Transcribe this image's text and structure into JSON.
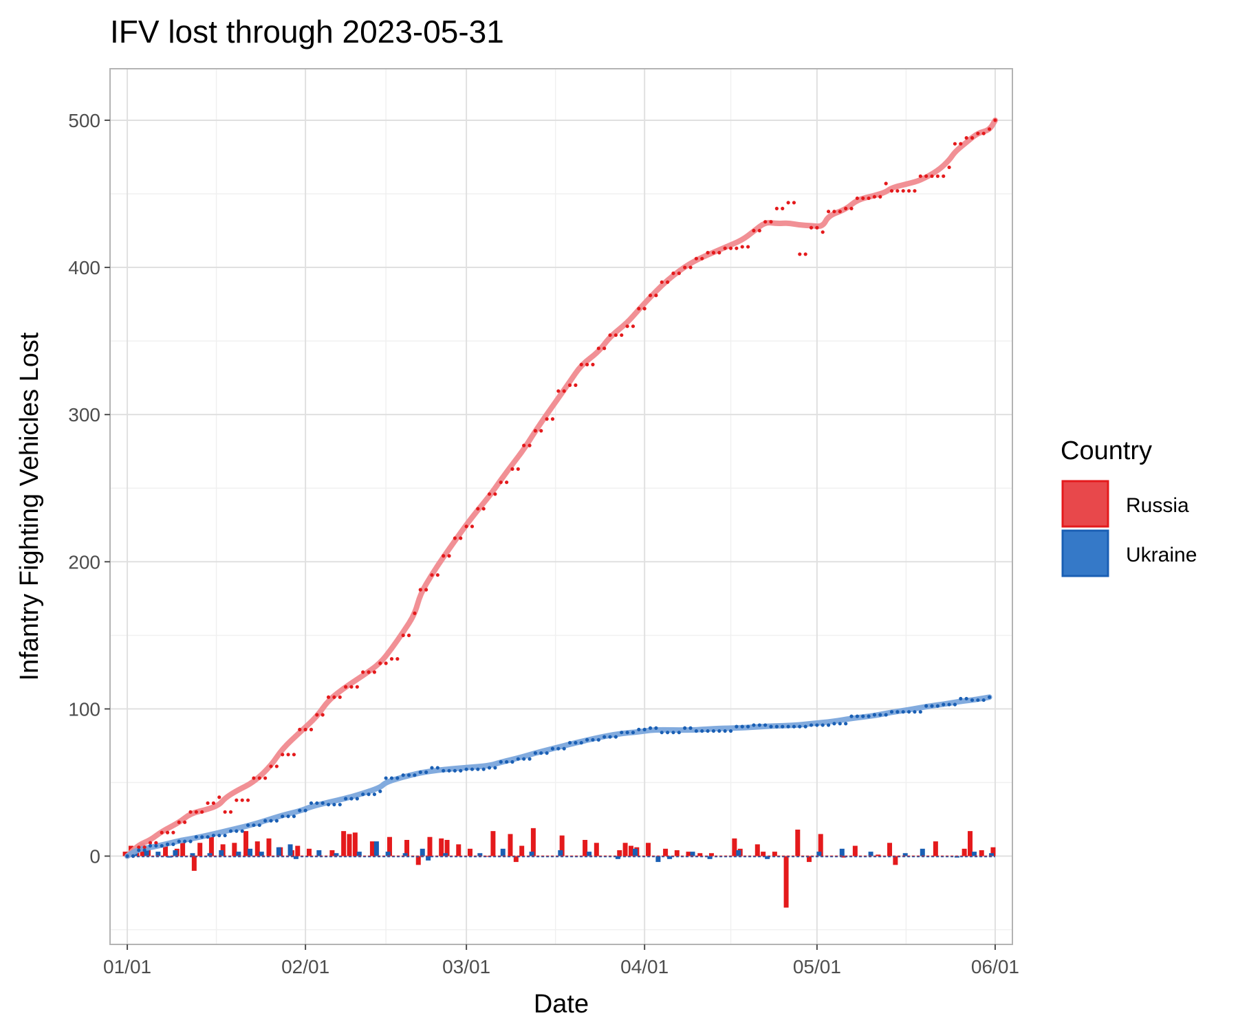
{
  "chart_data": {
    "type": "line",
    "title": "IFV lost through 2023-05-31",
    "xlabel": "Date",
    "ylabel": "Infantry Fighting Vehicles Lost",
    "x_range": [
      "2022-12-29",
      "2023-06-04"
    ],
    "ylim": [
      -60,
      535
    ],
    "x_ticks": [
      {
        "date": "2023-01-01",
        "label": "01/01"
      },
      {
        "date": "2023-02-01",
        "label": "02/01"
      },
      {
        "date": "2023-03-01",
        "label": "03/01"
      },
      {
        "date": "2023-04-01",
        "label": "04/01"
      },
      {
        "date": "2023-05-01",
        "label": "05/01"
      },
      {
        "date": "2023-06-01",
        "label": "06/01"
      }
    ],
    "y_ticks": [
      0,
      100,
      200,
      300,
      400,
      500
    ],
    "grid": true,
    "legend": {
      "title": "Country",
      "placement": "right"
    },
    "colors": {
      "Russia": "#e41a1c",
      "Ukraine": "#1a5fb4",
      "Russia_smooth": "#f08a8f",
      "Ukraine_smooth": "#7ba6dc",
      "Russia_fill": "#e8484b",
      "Ukraine_fill": "#3579c8"
    },
    "series": [
      {
        "name": "Russia",
        "cumulative": [
          [
            "2023-01-01",
            0
          ],
          [
            "2023-01-03",
            6
          ],
          [
            "2023-01-05",
            9
          ],
          [
            "2023-01-07",
            16
          ],
          [
            "2023-01-10",
            23
          ],
          [
            "2023-01-12",
            30
          ],
          [
            "2023-01-15",
            36
          ],
          [
            "2023-01-17",
            40
          ],
          [
            "2023-01-18",
            30
          ],
          [
            "2023-01-20",
            38
          ],
          [
            "2023-01-23",
            53
          ],
          [
            "2023-01-26",
            61
          ],
          [
            "2023-01-28",
            69
          ],
          [
            "2023-01-31",
            86
          ],
          [
            "2023-02-03",
            96
          ],
          [
            "2023-02-05",
            108
          ],
          [
            "2023-02-08",
            115
          ],
          [
            "2023-02-11",
            125
          ],
          [
            "2023-02-14",
            131
          ],
          [
            "2023-02-16",
            134
          ],
          [
            "2023-02-18",
            150
          ],
          [
            "2023-02-20",
            165
          ],
          [
            "2023-02-21",
            181
          ],
          [
            "2023-02-23",
            191
          ],
          [
            "2023-02-25",
            204
          ],
          [
            "2023-02-27",
            216
          ],
          [
            "2023-03-01",
            224
          ],
          [
            "2023-03-03",
            236
          ],
          [
            "2023-03-05",
            246
          ],
          [
            "2023-03-07",
            254
          ],
          [
            "2023-03-09",
            263
          ],
          [
            "2023-03-11",
            279
          ],
          [
            "2023-03-13",
            289
          ],
          [
            "2023-03-15",
            297
          ],
          [
            "2023-03-17",
            316
          ],
          [
            "2023-03-19",
            320
          ],
          [
            "2023-03-21",
            334
          ],
          [
            "2023-03-24",
            345
          ],
          [
            "2023-03-26",
            354
          ],
          [
            "2023-03-29",
            360
          ],
          [
            "2023-03-31",
            372
          ],
          [
            "2023-04-02",
            381
          ],
          [
            "2023-04-04",
            390
          ],
          [
            "2023-04-06",
            396
          ],
          [
            "2023-04-08",
            400
          ],
          [
            "2023-04-10",
            406
          ],
          [
            "2023-04-12",
            410
          ],
          [
            "2023-04-15",
            413
          ],
          [
            "2023-04-18",
            414
          ],
          [
            "2023-04-20",
            425
          ],
          [
            "2023-04-22",
            431
          ],
          [
            "2023-04-24",
            440
          ],
          [
            "2023-04-26",
            444
          ],
          [
            "2023-04-28",
            409
          ],
          [
            "2023-04-30",
            427
          ],
          [
            "2023-05-02",
            424
          ],
          [
            "2023-05-03",
            438
          ],
          [
            "2023-05-06",
            440
          ],
          [
            "2023-05-08",
            447
          ],
          [
            "2023-05-11",
            448
          ],
          [
            "2023-05-13",
            457
          ],
          [
            "2023-05-14",
            452
          ],
          [
            "2023-05-17",
            452
          ],
          [
            "2023-05-19",
            462
          ],
          [
            "2023-05-22",
            462
          ],
          [
            "2023-05-24",
            468
          ],
          [
            "2023-05-25",
            484
          ],
          [
            "2023-05-27",
            488
          ],
          [
            "2023-05-29",
            491
          ],
          [
            "2023-05-31",
            494
          ],
          [
            "2023-06-01",
            500
          ]
        ],
        "daily": [
          [
            "2023-01-01",
            3
          ],
          [
            "2023-01-02",
            7
          ],
          [
            "2023-01-03",
            5
          ],
          [
            "2023-01-04",
            9
          ],
          [
            "2023-01-05",
            6
          ],
          [
            "2023-01-08",
            7
          ],
          [
            "2023-01-10",
            5
          ],
          [
            "2023-01-11",
            9
          ],
          [
            "2023-01-13",
            -10
          ],
          [
            "2023-01-14",
            9
          ],
          [
            "2023-01-16",
            13
          ],
          [
            "2023-01-18",
            8
          ],
          [
            "2023-01-20",
            9
          ],
          [
            "2023-01-22",
            17
          ],
          [
            "2023-01-24",
            10
          ],
          [
            "2023-01-26",
            12
          ],
          [
            "2023-01-28",
            6
          ],
          [
            "2023-01-30",
            4
          ],
          [
            "2023-01-31",
            7
          ],
          [
            "2023-02-02",
            5
          ],
          [
            "2023-02-06",
            4
          ],
          [
            "2023-02-08",
            17
          ],
          [
            "2023-02-09",
            15
          ],
          [
            "2023-02-10",
            16
          ],
          [
            "2023-02-13",
            10
          ],
          [
            "2023-02-16",
            13
          ],
          [
            "2023-02-19",
            11
          ],
          [
            "2023-02-21",
            -6
          ],
          [
            "2023-02-23",
            13
          ],
          [
            "2023-02-25",
            12
          ],
          [
            "2023-02-26",
            11
          ],
          [
            "2023-02-28",
            8
          ],
          [
            "2023-03-02",
            5
          ],
          [
            "2023-03-05",
            0
          ],
          [
            "2023-03-06",
            17
          ],
          [
            "2023-03-09",
            15
          ],
          [
            "2023-03-10",
            -4
          ],
          [
            "2023-03-11",
            7
          ],
          [
            "2023-03-13",
            19
          ],
          [
            "2023-03-18",
            14
          ],
          [
            "2023-03-22",
            11
          ],
          [
            "2023-03-24",
            9
          ],
          [
            "2023-03-28",
            4
          ],
          [
            "2023-03-29",
            9
          ],
          [
            "2023-03-30",
            7
          ],
          [
            "2023-03-31",
            6
          ],
          [
            "2023-04-02",
            9
          ],
          [
            "2023-04-05",
            5
          ],
          [
            "2023-04-07",
            4
          ],
          [
            "2023-04-09",
            3
          ],
          [
            "2023-04-11",
            2
          ],
          [
            "2023-04-13",
            2
          ],
          [
            "2023-04-17",
            12
          ],
          [
            "2023-04-18",
            5
          ],
          [
            "2023-04-21",
            8
          ],
          [
            "2023-04-22",
            3
          ],
          [
            "2023-04-24",
            3
          ],
          [
            "2023-04-26",
            -35
          ],
          [
            "2023-04-28",
            18
          ],
          [
            "2023-04-30",
            -4
          ],
          [
            "2023-05-02",
            15
          ],
          [
            "2023-05-06",
            -1
          ],
          [
            "2023-05-08",
            7
          ],
          [
            "2023-05-12",
            1
          ],
          [
            "2023-05-14",
            9
          ],
          [
            "2023-05-15",
            -6
          ],
          [
            "2023-05-22",
            10
          ],
          [
            "2023-05-27",
            5
          ],
          [
            "2023-05-28",
            17
          ],
          [
            "2023-05-30",
            4
          ],
          [
            "2023-06-01",
            6
          ]
        ]
      },
      {
        "name": "Ukraine",
        "cumulative": [
          [
            "2023-01-01",
            0
          ],
          [
            "2023-01-03",
            4
          ],
          [
            "2023-01-05",
            7
          ],
          [
            "2023-01-08",
            8
          ],
          [
            "2023-01-10",
            10
          ],
          [
            "2023-01-13",
            13
          ],
          [
            "2023-01-16",
            14
          ],
          [
            "2023-01-19",
            17
          ],
          [
            "2023-01-22",
            21
          ],
          [
            "2023-01-25",
            24
          ],
          [
            "2023-01-28",
            27
          ],
          [
            "2023-01-31",
            31
          ],
          [
            "2023-02-02",
            36
          ],
          [
            "2023-02-05",
            35
          ],
          [
            "2023-02-08",
            39
          ],
          [
            "2023-02-11",
            42
          ],
          [
            "2023-02-14",
            44
          ],
          [
            "2023-02-15",
            53
          ],
          [
            "2023-02-18",
            55
          ],
          [
            "2023-02-21",
            57
          ],
          [
            "2023-02-23",
            60
          ],
          [
            "2023-02-25",
            58
          ],
          [
            "2023-03-01",
            59
          ],
          [
            "2023-03-05",
            60
          ],
          [
            "2023-03-07",
            64
          ],
          [
            "2023-03-10",
            66
          ],
          [
            "2023-03-13",
            70
          ],
          [
            "2023-03-16",
            73
          ],
          [
            "2023-03-19",
            77
          ],
          [
            "2023-03-22",
            79
          ],
          [
            "2023-03-25",
            81
          ],
          [
            "2023-03-28",
            84
          ],
          [
            "2023-03-31",
            86
          ],
          [
            "2023-04-02",
            87
          ],
          [
            "2023-04-04",
            84
          ],
          [
            "2023-04-08",
            87
          ],
          [
            "2023-04-10",
            85
          ],
          [
            "2023-04-14",
            85
          ],
          [
            "2023-04-17",
            88
          ],
          [
            "2023-04-20",
            89
          ],
          [
            "2023-04-23",
            88
          ],
          [
            "2023-04-27",
            88
          ],
          [
            "2023-04-30",
            89
          ],
          [
            "2023-05-04",
            90
          ],
          [
            "2023-05-07",
            95
          ],
          [
            "2023-05-11",
            96
          ],
          [
            "2023-05-14",
            98
          ],
          [
            "2023-05-17",
            98
          ],
          [
            "2023-05-20",
            102
          ],
          [
            "2023-05-23",
            103
          ],
          [
            "2023-05-26",
            107
          ],
          [
            "2023-05-28",
            106
          ],
          [
            "2023-05-31",
            108
          ]
        ],
        "daily": [
          [
            "2023-01-02",
            3
          ],
          [
            "2023-01-04",
            5
          ],
          [
            "2023-01-06",
            3
          ],
          [
            "2023-01-08",
            -1
          ],
          [
            "2023-01-09",
            4
          ],
          [
            "2023-01-12",
            2
          ],
          [
            "2023-01-15",
            2
          ],
          [
            "2023-01-17",
            4
          ],
          [
            "2023-01-20",
            3
          ],
          [
            "2023-01-22",
            5
          ],
          [
            "2023-01-24",
            3
          ],
          [
            "2023-01-27",
            6
          ],
          [
            "2023-01-29",
            8
          ],
          [
            "2023-01-30",
            -2
          ],
          [
            "2023-02-03",
            4
          ],
          [
            "2023-02-06",
            2
          ],
          [
            "2023-02-10",
            3
          ],
          [
            "2023-02-13",
            10
          ],
          [
            "2023-02-15",
            3
          ],
          [
            "2023-02-18",
            2
          ],
          [
            "2023-02-21",
            5
          ],
          [
            "2023-02-22",
            -3
          ],
          [
            "2023-02-25",
            2
          ],
          [
            "2023-03-03",
            2
          ],
          [
            "2023-03-07",
            5
          ],
          [
            "2023-03-12",
            3
          ],
          [
            "2023-03-17",
            4
          ],
          [
            "2023-03-22",
            3
          ],
          [
            "2023-03-27",
            -2
          ],
          [
            "2023-03-30",
            5
          ],
          [
            "2023-04-03",
            -4
          ],
          [
            "2023-04-05",
            -2
          ],
          [
            "2023-04-09",
            3
          ],
          [
            "2023-04-12",
            -2
          ],
          [
            "2023-04-17",
            4
          ],
          [
            "2023-04-22",
            -2
          ],
          [
            "2023-05-01",
            3
          ],
          [
            "2023-05-05",
            5
          ],
          [
            "2023-05-10",
            3
          ],
          [
            "2023-05-16",
            2
          ],
          [
            "2023-05-19",
            5
          ],
          [
            "2023-05-25",
            -1
          ],
          [
            "2023-05-28",
            3
          ],
          [
            "2023-05-31",
            2
          ]
        ]
      }
    ]
  }
}
